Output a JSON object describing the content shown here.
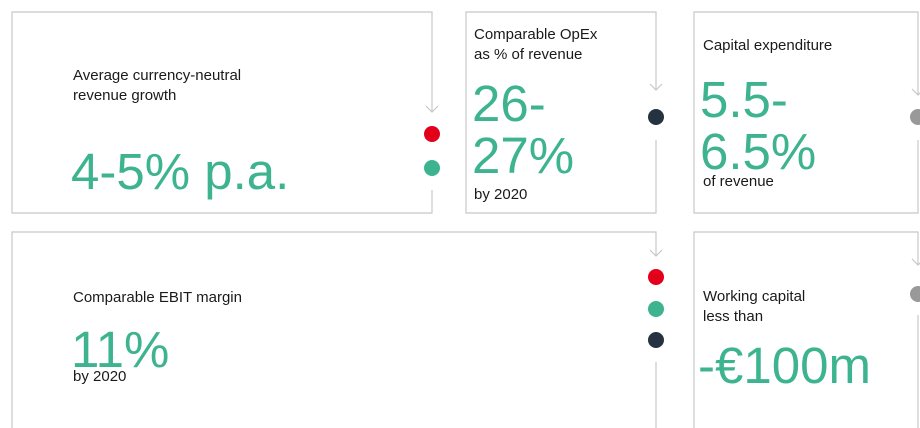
{
  "cards": [
    {
      "label": [
        "Average currency-neutral",
        "revenue growth"
      ],
      "value": [
        "4-5% p.a."
      ]
    },
    {
      "label": [
        "Comparable OpEx",
        "as % of revenue"
      ],
      "value": [
        "26-",
        "27%"
      ],
      "note": "by 2020"
    },
    {
      "label": [
        "Capital expenditure"
      ],
      "value": [
        "5.5-",
        "6.5%"
      ],
      "note": "of revenue"
    },
    {
      "label": [
        "Comparable EBIT margin"
      ],
      "value": [
        "11%"
      ],
      "note": "by 2020"
    },
    {
      "label": [
        "Working capital",
        "less than"
      ],
      "value": [
        "-€100m"
      ]
    }
  ]
}
